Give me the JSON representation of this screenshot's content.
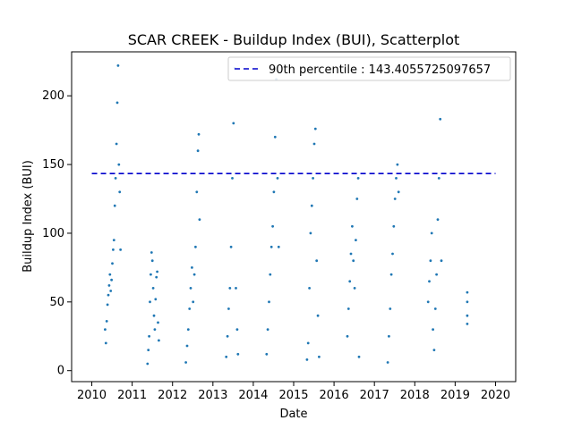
{
  "chart_data": {
    "type": "scatter",
    "title": "SCAR CREEK - Buildup Index (BUI), Scatterplot",
    "xlabel": "Date",
    "ylabel": "Buildup Index (BUI)",
    "xlim": [
      2009.5,
      2020.5
    ],
    "ylim": [
      -8,
      232
    ],
    "x_ticks": [
      2010,
      2011,
      2012,
      2013,
      2014,
      2015,
      2016,
      2017,
      2018,
      2019,
      2020
    ],
    "y_ticks": [
      0,
      50,
      100,
      150,
      200
    ],
    "grid": false,
    "legend_position": "top-right",
    "point_color": "#1f77b4",
    "reference_line": {
      "label": "90th percentile : 143.4055725097657",
      "value": 143.4055725097657,
      "x_range": [
        2010,
        2020
      ],
      "color": "#0000cc",
      "style": "dashed"
    },
    "series": [
      {
        "values": [
          [
            2010.33,
            30
          ],
          [
            2010.35,
            20
          ],
          [
            2010.37,
            36
          ],
          [
            2010.39,
            48
          ],
          [
            2010.41,
            55
          ],
          [
            2010.43,
            62
          ],
          [
            2010.45,
            70
          ],
          [
            2010.47,
            58
          ],
          [
            2010.49,
            66
          ],
          [
            2010.51,
            78
          ],
          [
            2010.53,
            88
          ],
          [
            2010.55,
            95
          ],
          [
            2010.57,
            120
          ],
          [
            2010.59,
            140
          ],
          [
            2010.61,
            165
          ],
          [
            2010.63,
            195
          ],
          [
            2010.65,
            222
          ],
          [
            2010.67,
            150
          ],
          [
            2010.69,
            130
          ],
          [
            2010.71,
            88
          ],
          [
            2011.38,
            5
          ],
          [
            2011.4,
            15
          ],
          [
            2011.42,
            25
          ],
          [
            2011.44,
            50
          ],
          [
            2011.46,
            70
          ],
          [
            2011.48,
            86
          ],
          [
            2011.5,
            80
          ],
          [
            2011.52,
            60
          ],
          [
            2011.54,
            40
          ],
          [
            2011.56,
            30
          ],
          [
            2011.58,
            52
          ],
          [
            2011.6,
            68
          ],
          [
            2011.62,
            72
          ],
          [
            2011.64,
            35
          ],
          [
            2011.66,
            22
          ],
          [
            2012.33,
            6
          ],
          [
            2012.36,
            18
          ],
          [
            2012.39,
            30
          ],
          [
            2012.42,
            45
          ],
          [
            2012.45,
            60
          ],
          [
            2012.48,
            75
          ],
          [
            2012.51,
            50
          ],
          [
            2012.54,
            70
          ],
          [
            2012.57,
            90
          ],
          [
            2012.6,
            130
          ],
          [
            2012.63,
            160
          ],
          [
            2012.65,
            172
          ],
          [
            2012.67,
            110
          ],
          [
            2013.33,
            10
          ],
          [
            2013.36,
            25
          ],
          [
            2013.39,
            45
          ],
          [
            2013.42,
            60
          ],
          [
            2013.45,
            90
          ],
          [
            2013.48,
            140
          ],
          [
            2013.51,
            180
          ],
          [
            2013.54,
            220
          ],
          [
            2013.57,
            60
          ],
          [
            2013.6,
            30
          ],
          [
            2013.62,
            12
          ],
          [
            2014.33,
            12
          ],
          [
            2014.36,
            30
          ],
          [
            2014.39,
            50
          ],
          [
            2014.42,
            70
          ],
          [
            2014.45,
            90
          ],
          [
            2014.48,
            105
          ],
          [
            2014.51,
            130
          ],
          [
            2014.54,
            170
          ],
          [
            2014.57,
            212
          ],
          [
            2014.6,
            140
          ],
          [
            2014.63,
            90
          ],
          [
            2015.33,
            8
          ],
          [
            2015.36,
            20
          ],
          [
            2015.39,
            60
          ],
          [
            2015.42,
            100
          ],
          [
            2015.45,
            120
          ],
          [
            2015.48,
            140
          ],
          [
            2015.51,
            165
          ],
          [
            2015.54,
            176
          ],
          [
            2015.57,
            80
          ],
          [
            2015.6,
            40
          ],
          [
            2015.63,
            10
          ],
          [
            2016.33,
            25
          ],
          [
            2016.36,
            45
          ],
          [
            2016.39,
            65
          ],
          [
            2016.42,
            85
          ],
          [
            2016.45,
            105
          ],
          [
            2016.48,
            80
          ],
          [
            2016.51,
            60
          ],
          [
            2016.54,
            95
          ],
          [
            2016.57,
            125
          ],
          [
            2016.6,
            140
          ],
          [
            2016.62,
            10
          ],
          [
            2017.33,
            6
          ],
          [
            2017.36,
            25
          ],
          [
            2017.39,
            45
          ],
          [
            2017.42,
            70
          ],
          [
            2017.45,
            85
          ],
          [
            2017.48,
            105
          ],
          [
            2017.51,
            125
          ],
          [
            2017.54,
            140
          ],
          [
            2017.57,
            150
          ],
          [
            2017.6,
            130
          ],
          [
            2018.33,
            50
          ],
          [
            2018.36,
            65
          ],
          [
            2018.39,
            80
          ],
          [
            2018.42,
            100
          ],
          [
            2018.45,
            30
          ],
          [
            2018.48,
            15
          ],
          [
            2018.51,
            45
          ],
          [
            2018.54,
            70
          ],
          [
            2018.57,
            110
          ],
          [
            2018.6,
            140
          ],
          [
            2018.63,
            183
          ],
          [
            2018.66,
            80
          ],
          [
            2019.3,
            34
          ],
          [
            2019.3,
            40
          ],
          [
            2019.3,
            50
          ],
          [
            2019.3,
            57
          ]
        ]
      }
    ]
  }
}
